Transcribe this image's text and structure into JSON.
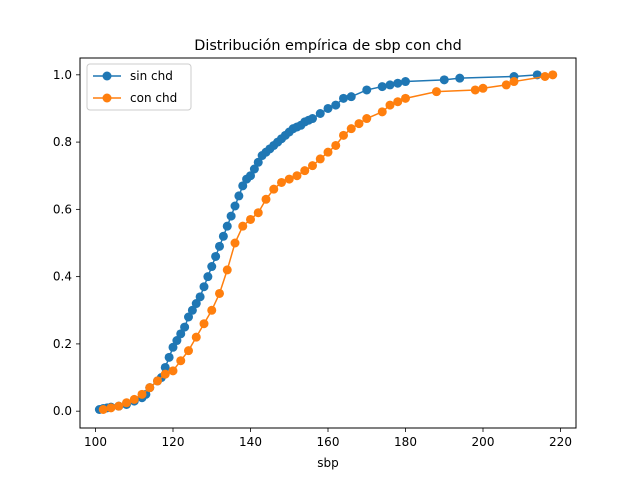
{
  "chart_data": {
    "type": "line",
    "title": "Distribución empírica de sbp con chd",
    "xlabel": "sbp",
    "ylabel": "",
    "xlim": [
      96,
      224
    ],
    "ylim": [
      -0.05,
      1.05
    ],
    "xticks": [
      "100",
      "120",
      "140",
      "160",
      "180",
      "200",
      "220"
    ],
    "yticks": [
      "0.0",
      "0.2",
      "0.4",
      "0.6",
      "0.8",
      "1.0"
    ],
    "grid": false,
    "legend": "top-left",
    "series": [
      {
        "name": " sin chd",
        "color": "#1f77b4",
        "x": [
          101,
          102,
          103,
          104,
          106,
          108,
          110,
          112,
          113,
          114,
          116,
          117,
          118,
          119,
          120,
          121,
          122,
          123,
          124,
          125,
          126,
          127,
          128,
          129,
          130,
          131,
          132,
          133,
          134,
          135,
          136,
          137,
          138,
          139,
          140,
          141,
          142,
          143,
          144,
          145,
          146,
          147,
          148,
          149,
          150,
          151,
          152,
          153,
          154,
          155,
          156,
          158,
          160,
          162,
          164,
          166,
          170,
          174,
          176,
          178,
          180,
          190,
          194,
          208,
          214
        ],
        "y": [
          0.005,
          0.008,
          0.01,
          0.012,
          0.015,
          0.02,
          0.03,
          0.04,
          0.05,
          0.07,
          0.09,
          0.1,
          0.13,
          0.16,
          0.19,
          0.21,
          0.23,
          0.25,
          0.28,
          0.3,
          0.32,
          0.34,
          0.37,
          0.4,
          0.43,
          0.46,
          0.49,
          0.52,
          0.55,
          0.58,
          0.61,
          0.64,
          0.67,
          0.69,
          0.7,
          0.72,
          0.74,
          0.76,
          0.77,
          0.78,
          0.79,
          0.8,
          0.81,
          0.82,
          0.83,
          0.84,
          0.845,
          0.85,
          0.86,
          0.865,
          0.87,
          0.885,
          0.9,
          0.91,
          0.93,
          0.935,
          0.955,
          0.965,
          0.97,
          0.975,
          0.98,
          0.985,
          0.99,
          0.995,
          1.0
        ]
      },
      {
        "name": "con chd",
        "color": "#ff7f0e",
        "x": [
          102,
          104,
          106,
          108,
          110,
          112,
          114,
          116,
          118,
          120,
          122,
          124,
          126,
          128,
          130,
          132,
          134,
          136,
          138,
          140,
          142,
          144,
          146,
          148,
          150,
          152,
          154,
          156,
          158,
          160,
          162,
          164,
          166,
          168,
          170,
          174,
          176,
          178,
          180,
          188,
          198,
          200,
          206,
          208,
          216,
          218
        ],
        "y": [
          0.005,
          0.01,
          0.015,
          0.025,
          0.035,
          0.05,
          0.07,
          0.09,
          0.11,
          0.12,
          0.15,
          0.18,
          0.22,
          0.26,
          0.3,
          0.35,
          0.42,
          0.5,
          0.55,
          0.57,
          0.59,
          0.63,
          0.66,
          0.68,
          0.69,
          0.7,
          0.715,
          0.73,
          0.75,
          0.77,
          0.79,
          0.82,
          0.84,
          0.855,
          0.87,
          0.89,
          0.91,
          0.92,
          0.93,
          0.95,
          0.955,
          0.96,
          0.97,
          0.98,
          0.995,
          1.0
        ]
      }
    ]
  }
}
